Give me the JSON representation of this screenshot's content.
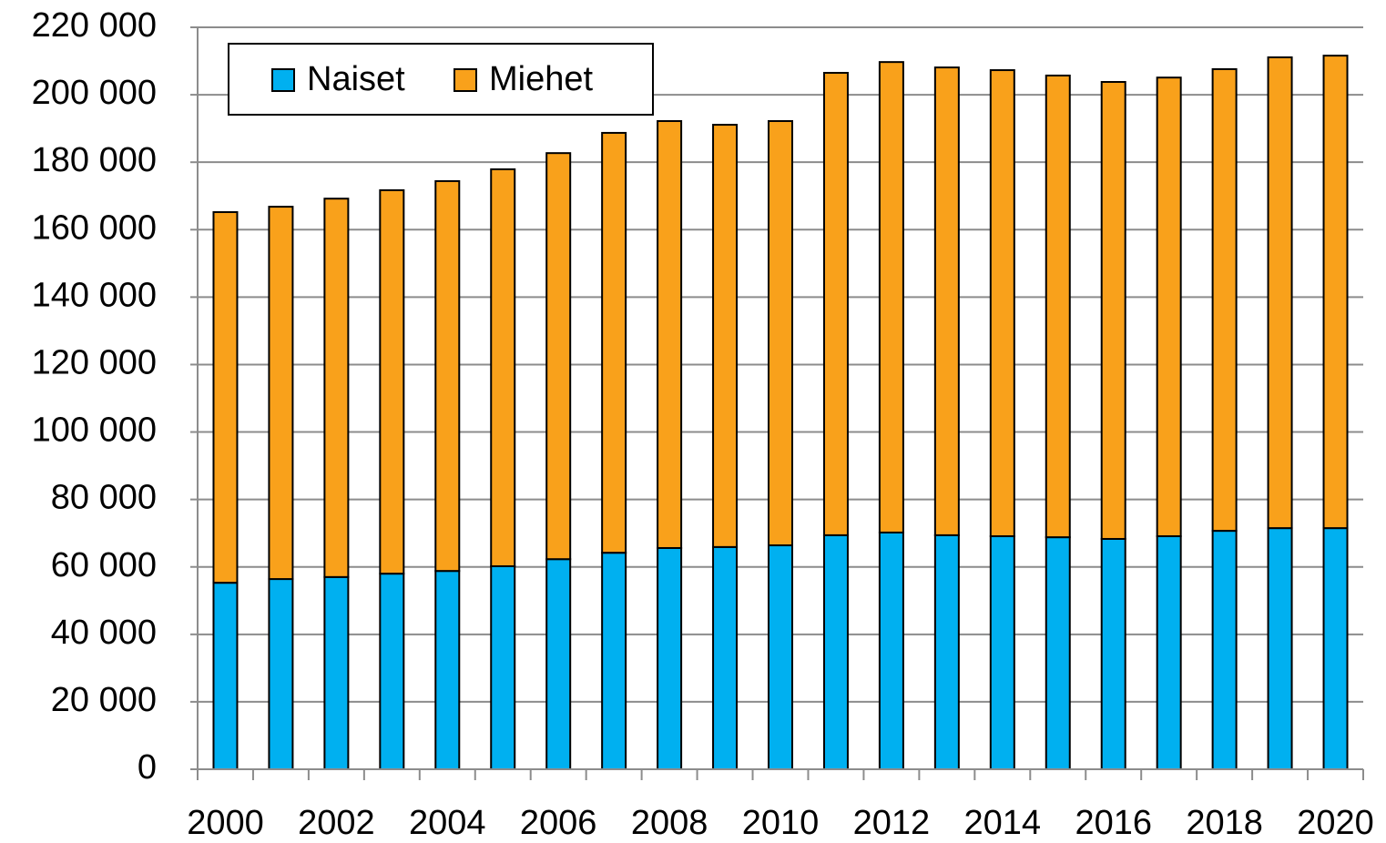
{
  "chart_data": {
    "type": "stacked-bar",
    "categories": [
      "2000",
      null,
      "2002",
      null,
      "2004",
      null,
      "2006",
      null,
      "2008",
      null,
      "2010",
      null,
      "2012",
      null,
      "2014",
      null,
      "2016",
      null,
      "2018",
      null,
      "2020"
    ],
    "series": [
      {
        "name": "Naiset",
        "color": "#00B0F0",
        "values": [
          55300,
          56400,
          57000,
          58000,
          58800,
          60200,
          62300,
          64200,
          65600,
          65900,
          66400,
          69400,
          70200,
          69400,
          69100,
          68800,
          68300,
          69100,
          70700,
          71500,
          71500
        ]
      },
      {
        "name": "Miehet",
        "color": "#F9A11B",
        "values": [
          109900,
          110400,
          112200,
          113700,
          115600,
          117700,
          120400,
          124500,
          126600,
          125200,
          125800,
          137100,
          139500,
          138700,
          138200,
          136900,
          135500,
          136000,
          136900,
          139600,
          140100
        ]
      }
    ],
    "ylim": [
      0,
      220000
    ],
    "yticks": [
      0,
      {
        "value": 20000,
        "label": "20 000"
      },
      {
        "value": 40000,
        "label": "40 000"
      },
      {
        "value": 60000,
        "label": "60 000"
      },
      {
        "value": 80000,
        "label": "80 000"
      },
      {
        "value": 100000,
        "label": "100 000"
      },
      {
        "value": 120000,
        "label": "120 000"
      },
      {
        "value": 140000,
        "label": "140 000"
      },
      {
        "value": 160000,
        "label": "160 000"
      },
      {
        "value": 180000,
        "label": "180 000"
      },
      {
        "value": 200000,
        "label": "200 000"
      },
      {
        "value": 220000,
        "label": "220 000"
      }
    ],
    "grid": true,
    "legend": "top-left"
  }
}
